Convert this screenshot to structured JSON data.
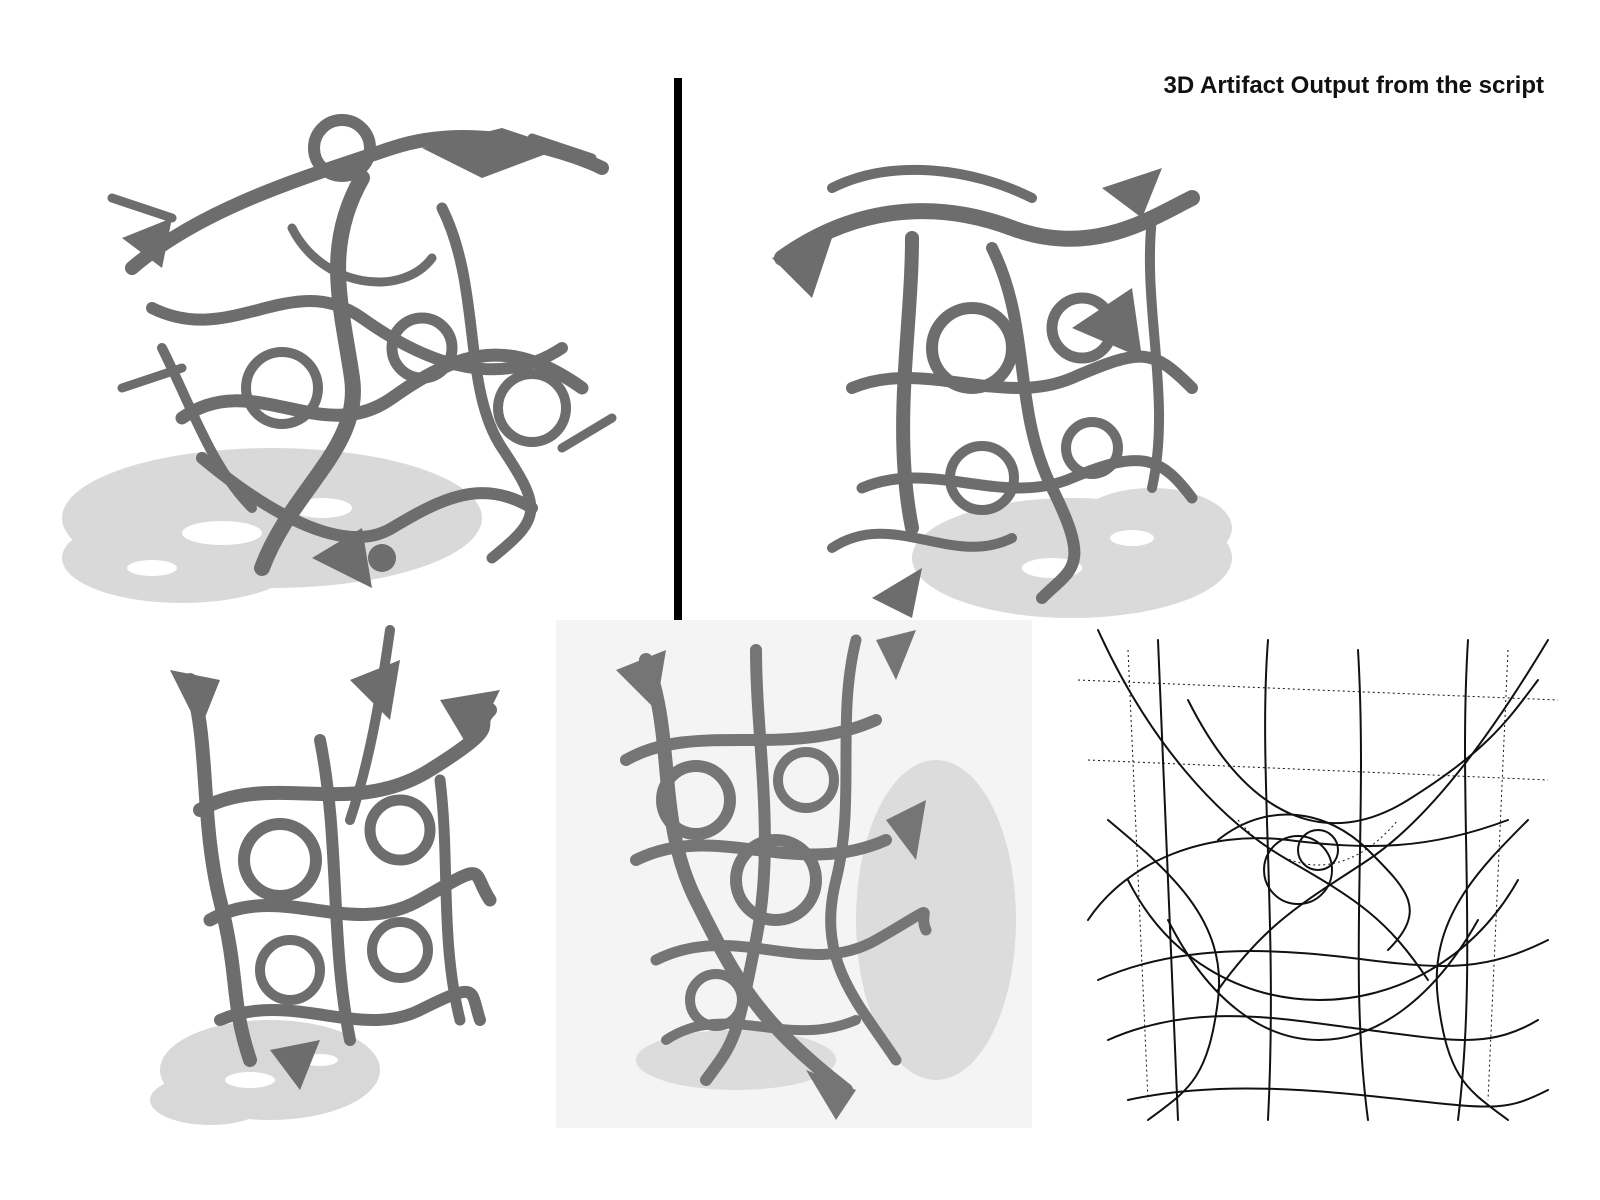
{
  "caption": {
    "text": "3D Artifact Output from the script"
  },
  "colors": {
    "artifact_fill": "#6e6e6e",
    "artifact_shadow": "#d8d8d8",
    "wireframe": "#111111",
    "divider": "#000000"
  }
}
